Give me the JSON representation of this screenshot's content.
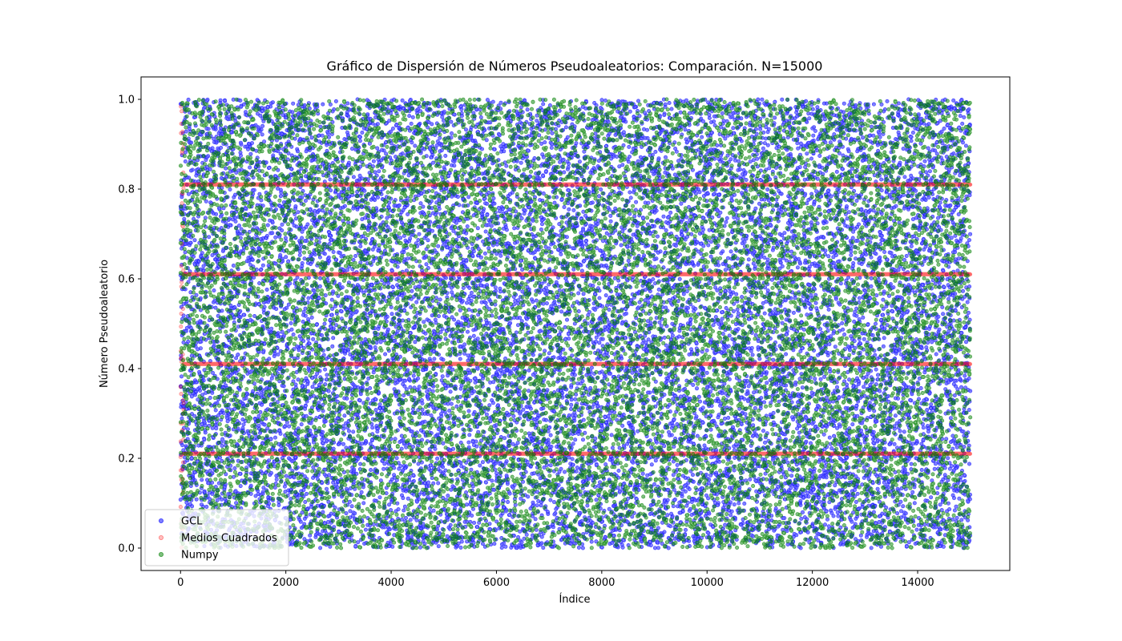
{
  "chart_data": {
    "type": "scatter",
    "title": "Gráfico de Dispersión de Números Pseudoaleatorios: Comparación. N=15000",
    "xlabel": "Índice",
    "ylabel": "Número Pseudoaleatorio",
    "xlim": [
      -750,
      15750
    ],
    "ylim": [
      -0.05,
      1.05
    ],
    "xticks": [
      0,
      2000,
      4000,
      6000,
      8000,
      10000,
      12000,
      14000
    ],
    "yticks": [
      0.0,
      0.2,
      0.4,
      0.6,
      0.8,
      1.0
    ],
    "xtick_labels": [
      "0",
      "2000",
      "4000",
      "6000",
      "8000",
      "10000",
      "12000",
      "14000"
    ],
    "ytick_labels": [
      "0.0",
      "0.2",
      "0.4",
      "0.6",
      "0.8",
      "1.0"
    ],
    "grid": false,
    "legend_position": "lower-left",
    "n": 15000,
    "series": [
      {
        "name": "GCL",
        "color": "#0000ff",
        "alpha": 0.5,
        "distribution": "uniform",
        "x_range": [
          0,
          14999
        ],
        "y_range": [
          0.0,
          1.0
        ]
      },
      {
        "name": "Medios Cuadrados",
        "color": "#ff0000",
        "alpha": 0.25,
        "initial_transient": {
          "x_range": [
            0,
            60
          ],
          "y_range": [
            0.0,
            1.0
          ]
        },
        "cycle_values": [
          0.21,
          0.41,
          0.61,
          0.81
        ],
        "x_range": [
          60,
          14999
        ]
      },
      {
        "name": "Numpy",
        "color": "#008000",
        "alpha": 0.5,
        "distribution": "uniform",
        "x_range": [
          0,
          14999
        ],
        "y_range": [
          0.0,
          1.0
        ]
      }
    ]
  }
}
